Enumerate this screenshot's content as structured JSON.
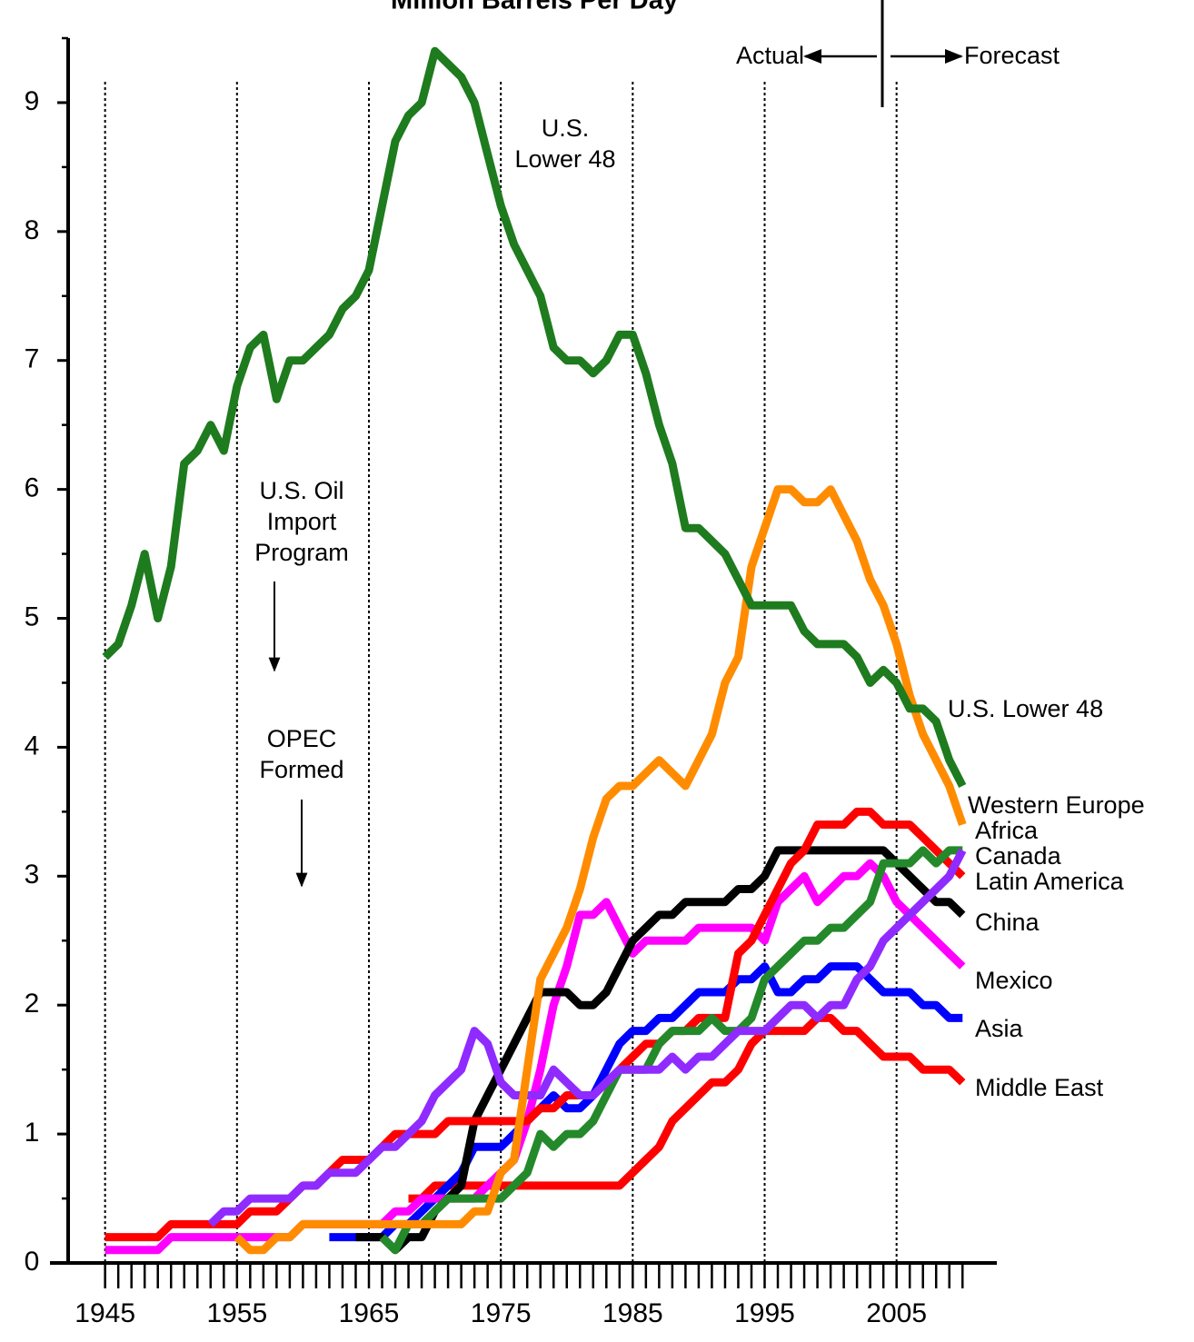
{
  "chart_data": {
    "type": "line",
    "title": "Million Barrels Per Day",
    "x": [
      1945,
      1946,
      1947,
      1948,
      1949,
      1950,
      1951,
      1952,
      1953,
      1954,
      1955,
      1956,
      1957,
      1958,
      1959,
      1960,
      1961,
      1962,
      1963,
      1964,
      1965,
      1966,
      1967,
      1968,
      1969,
      1970,
      1971,
      1972,
      1973,
      1974,
      1975,
      1976,
      1977,
      1978,
      1979,
      1980,
      1981,
      1982,
      1983,
      1984,
      1985,
      1986,
      1987,
      1988,
      1989,
      1990,
      1991,
      1992,
      1993,
      1994,
      1995,
      1996,
      1997,
      1998,
      1999,
      2000,
      2001,
      2002,
      2003,
      2004,
      2005,
      2006,
      2007,
      2008,
      2009,
      2010
    ],
    "series": [
      {
        "name": "U.S. Lower 48",
        "color": "#1e7b1e",
        "values": [
          4.7,
          4.8,
          5.1,
          5.5,
          5.0,
          5.4,
          6.2,
          6.3,
          6.5,
          6.3,
          6.8,
          7.1,
          7.2,
          6.7,
          7.0,
          7.0,
          7.1,
          7.2,
          7.4,
          7.5,
          7.7,
          8.2,
          8.7,
          8.9,
          9.0,
          9.4,
          9.3,
          9.2,
          9.0,
          8.6,
          8.2,
          7.9,
          7.7,
          7.5,
          7.1,
          7.0,
          7.0,
          6.9,
          7.0,
          7.2,
          7.2,
          6.9,
          6.5,
          6.2,
          5.7,
          5.7,
          5.6,
          5.5,
          5.3,
          5.1,
          5.1,
          5.1,
          5.1,
          4.9,
          4.8,
          4.8,
          4.8,
          4.7,
          4.5,
          4.6,
          4.5,
          4.3,
          4.3,
          4.2,
          3.9,
          3.7
        ]
      },
      {
        "name": "Western Europe",
        "color": "#ff8c00",
        "values": [
          null,
          null,
          null,
          null,
          null,
          null,
          null,
          null,
          null,
          null,
          0.2,
          0.1,
          0.1,
          0.2,
          0.2,
          0.3,
          0.3,
          0.3,
          0.3,
          0.3,
          0.3,
          0.3,
          0.3,
          0.3,
          0.3,
          0.3,
          0.3,
          0.3,
          0.4,
          0.4,
          0.7,
          0.8,
          1.5,
          2.2,
          2.4,
          2.6,
          2.9,
          3.3,
          3.6,
          3.7,
          3.7,
          3.8,
          3.9,
          3.8,
          3.7,
          3.9,
          4.1,
          4.5,
          4.7,
          5.4,
          5.7,
          6.0,
          6.0,
          5.9,
          5.9,
          6.0,
          5.8,
          5.6,
          5.3,
          5.1,
          4.8,
          4.4,
          4.1,
          3.9,
          3.7,
          3.4
        ]
      },
      {
        "name": "Africa",
        "color": "#8f2bff",
        "values": [
          null,
          null,
          null,
          null,
          null,
          null,
          null,
          null,
          0.3,
          0.4,
          0.4,
          0.5,
          0.5,
          0.5,
          0.5,
          0.6,
          0.6,
          0.7,
          0.7,
          0.7,
          0.8,
          0.9,
          0.9,
          1.0,
          1.1,
          1.3,
          1.4,
          1.5,
          1.8,
          1.7,
          1.4,
          1.3,
          1.3,
          1.3,
          1.5,
          1.4,
          1.3,
          1.3,
          1.4,
          1.5,
          1.5,
          1.5,
          1.5,
          1.6,
          1.5,
          1.6,
          1.6,
          1.7,
          1.8,
          1.8,
          1.8,
          1.9,
          2.0,
          2.0,
          1.9,
          2.0,
          2.0,
          2.2,
          2.3,
          2.5,
          2.6,
          2.7,
          2.8,
          2.9,
          3.0,
          3.2
        ]
      },
      {
        "name": "Canada",
        "color": "#24892a",
        "values": [
          null,
          null,
          null,
          null,
          null,
          null,
          null,
          null,
          null,
          null,
          null,
          null,
          null,
          null,
          null,
          null,
          null,
          null,
          null,
          null,
          null,
          0.2,
          0.1,
          0.3,
          0.3,
          0.4,
          0.5,
          0.5,
          0.5,
          0.5,
          0.5,
          0.6,
          0.7,
          1.0,
          0.9,
          1.0,
          1.0,
          1.1,
          1.3,
          1.5,
          1.5,
          1.5,
          1.7,
          1.8,
          1.8,
          1.8,
          1.9,
          1.8,
          1.8,
          1.9,
          2.2,
          2.3,
          2.4,
          2.5,
          2.5,
          2.6,
          2.6,
          2.7,
          2.8,
          3.1,
          3.1,
          3.1,
          3.2,
          3.1,
          3.2,
          3.2
        ]
      },
      {
        "name": "Latin America",
        "color": "#ff0000",
        "values": [
          0.2,
          0.2,
          0.2,
          0.2,
          0.2,
          0.3,
          0.3,
          0.3,
          0.3,
          0.3,
          0.3,
          0.4,
          0.4,
          0.4,
          0.5,
          0.6,
          0.6,
          0.7,
          0.8,
          0.8,
          0.8,
          0.9,
          1.0,
          1.0,
          1.0,
          1.0,
          1.1,
          1.1,
          1.1,
          1.1,
          1.1,
          1.1,
          1.1,
          1.2,
          1.2,
          1.3,
          1.3,
          1.3,
          1.4,
          1.5,
          1.6,
          1.7,
          1.7,
          1.8,
          1.8,
          1.9,
          1.9,
          1.9,
          2.4,
          2.5,
          2.7,
          2.9,
          3.1,
          3.2,
          3.4,
          3.4,
          3.4,
          3.5,
          3.5,
          3.4,
          3.4,
          3.4,
          3.3,
          3.2,
          3.1,
          3.0
        ]
      },
      {
        "name": "China",
        "color": "#000000",
        "values": [
          null,
          null,
          null,
          null,
          null,
          null,
          null,
          null,
          null,
          null,
          null,
          null,
          null,
          null,
          null,
          null,
          null,
          null,
          null,
          0.2,
          0.2,
          0.2,
          0.1,
          0.2,
          0.2,
          0.4,
          0.5,
          0.6,
          1.1,
          1.3,
          1.5,
          1.7,
          1.9,
          2.1,
          2.1,
          2.1,
          2.0,
          2.0,
          2.1,
          2.3,
          2.5,
          2.6,
          2.7,
          2.7,
          2.8,
          2.8,
          2.8,
          2.8,
          2.9,
          2.9,
          3.0,
          3.2,
          3.2,
          3.2,
          3.2,
          3.2,
          3.2,
          3.2,
          3.2,
          3.2,
          3.1,
          3.0,
          2.9,
          2.8,
          2.8,
          2.7
        ]
      },
      {
        "name": "Mexico",
        "color": "#ff00ff",
        "values": [
          0.1,
          0.1,
          0.1,
          0.1,
          0.1,
          0.2,
          0.2,
          0.2,
          0.2,
          0.2,
          0.2,
          0.2,
          0.2,
          0.2,
          0.2,
          0.3,
          0.3,
          0.3,
          0.3,
          0.3,
          0.3,
          0.3,
          0.4,
          0.4,
          0.5,
          0.5,
          0.5,
          0.5,
          0.5,
          0.6,
          0.7,
          0.8,
          1.1,
          1.5,
          2.0,
          2.3,
          2.7,
          2.7,
          2.8,
          2.6,
          2.4,
          2.5,
          2.5,
          2.5,
          2.5,
          2.6,
          2.6,
          2.6,
          2.6,
          2.6,
          2.5,
          2.8,
          2.9,
          3.0,
          2.8,
          2.9,
          3.0,
          3.0,
          3.1,
          3.0,
          2.8,
          2.7,
          2.6,
          2.5,
          2.4,
          2.3
        ]
      },
      {
        "name": "Asia",
        "color": "#0000ff",
        "values": [
          null,
          null,
          null,
          null,
          null,
          null,
          null,
          null,
          null,
          null,
          null,
          null,
          null,
          null,
          null,
          null,
          null,
          0.2,
          0.2,
          0.2,
          0.2,
          0.2,
          0.3,
          0.3,
          0.4,
          0.5,
          0.6,
          0.7,
          0.9,
          0.9,
          0.9,
          1.0,
          1.1,
          1.2,
          1.3,
          1.2,
          1.2,
          1.3,
          1.5,
          1.7,
          1.8,
          1.8,
          1.9,
          1.9,
          2.0,
          2.1,
          2.1,
          2.1,
          2.2,
          2.2,
          2.3,
          2.1,
          2.1,
          2.2,
          2.2,
          2.3,
          2.3,
          2.3,
          2.2,
          2.1,
          2.1,
          2.1,
          2.0,
          2.0,
          1.9,
          1.9
        ]
      },
      {
        "name": "Middle East",
        "color": "#ff0000",
        "values": [
          null,
          null,
          null,
          null,
          null,
          null,
          null,
          null,
          null,
          null,
          null,
          null,
          null,
          null,
          null,
          null,
          null,
          null,
          null,
          null,
          null,
          null,
          null,
          0.5,
          0.5,
          0.6,
          0.6,
          0.6,
          0.6,
          0.6,
          0.6,
          0.6,
          0.6,
          0.6,
          0.6,
          0.6,
          0.6,
          0.6,
          0.6,
          0.6,
          0.7,
          0.8,
          0.9,
          1.1,
          1.2,
          1.3,
          1.4,
          1.4,
          1.5,
          1.7,
          1.8,
          1.8,
          1.8,
          1.8,
          1.9,
          1.9,
          1.8,
          1.8,
          1.7,
          1.6,
          1.6,
          1.6,
          1.5,
          1.5,
          1.5,
          1.4
        ]
      }
    ],
    "xlim": [
      1942.2,
      2012.6
    ],
    "ylim": [
      0,
      9.5
    ],
    "xticks": [
      1945,
      1955,
      1965,
      1975,
      1985,
      1995,
      2005
    ],
    "xticks_minor": [
      1945,
      1946,
      1947,
      1948,
      1949,
      1950,
      1951,
      1952,
      1953,
      1954,
      1955,
      1956,
      1957,
      1958,
      1959,
      1960,
      1961,
      1962,
      1963,
      1964,
      1965,
      1966,
      1967,
      1968,
      1969,
      1970,
      1971,
      1972,
      1973,
      1974,
      1975,
      1976,
      1977,
      1978,
      1979,
      1980,
      1981,
      1982,
      1983,
      1984,
      1985,
      1986,
      1987,
      1988,
      1989,
      1990,
      1991,
      1992,
      1993,
      1994,
      1995,
      1996,
      1997,
      1998,
      1999,
      2000,
      2001,
      2002,
      2003,
      2004,
      2005,
      2006,
      2007,
      2008,
      2009,
      2010
    ],
    "yticks": [
      0,
      1,
      2,
      3,
      4,
      5,
      6,
      7,
      8,
      9
    ],
    "yticks_minor": [
      0.5,
      1.5,
      2.5,
      3.5,
      4.5,
      5.5,
      6.5,
      7.5,
      8.5,
      9.5
    ],
    "grid": "x",
    "annotations": [
      {
        "lines": [
          "U.S.",
          "Lower 48"
        ]
      },
      {
        "lines": [
          "U.S. Oil",
          "Import",
          "Program"
        ]
      },
      {
        "lines": [
          "OPEC",
          "Formed"
        ]
      }
    ],
    "actual_label": "Actual",
    "forecast_label": "Forecast"
  }
}
